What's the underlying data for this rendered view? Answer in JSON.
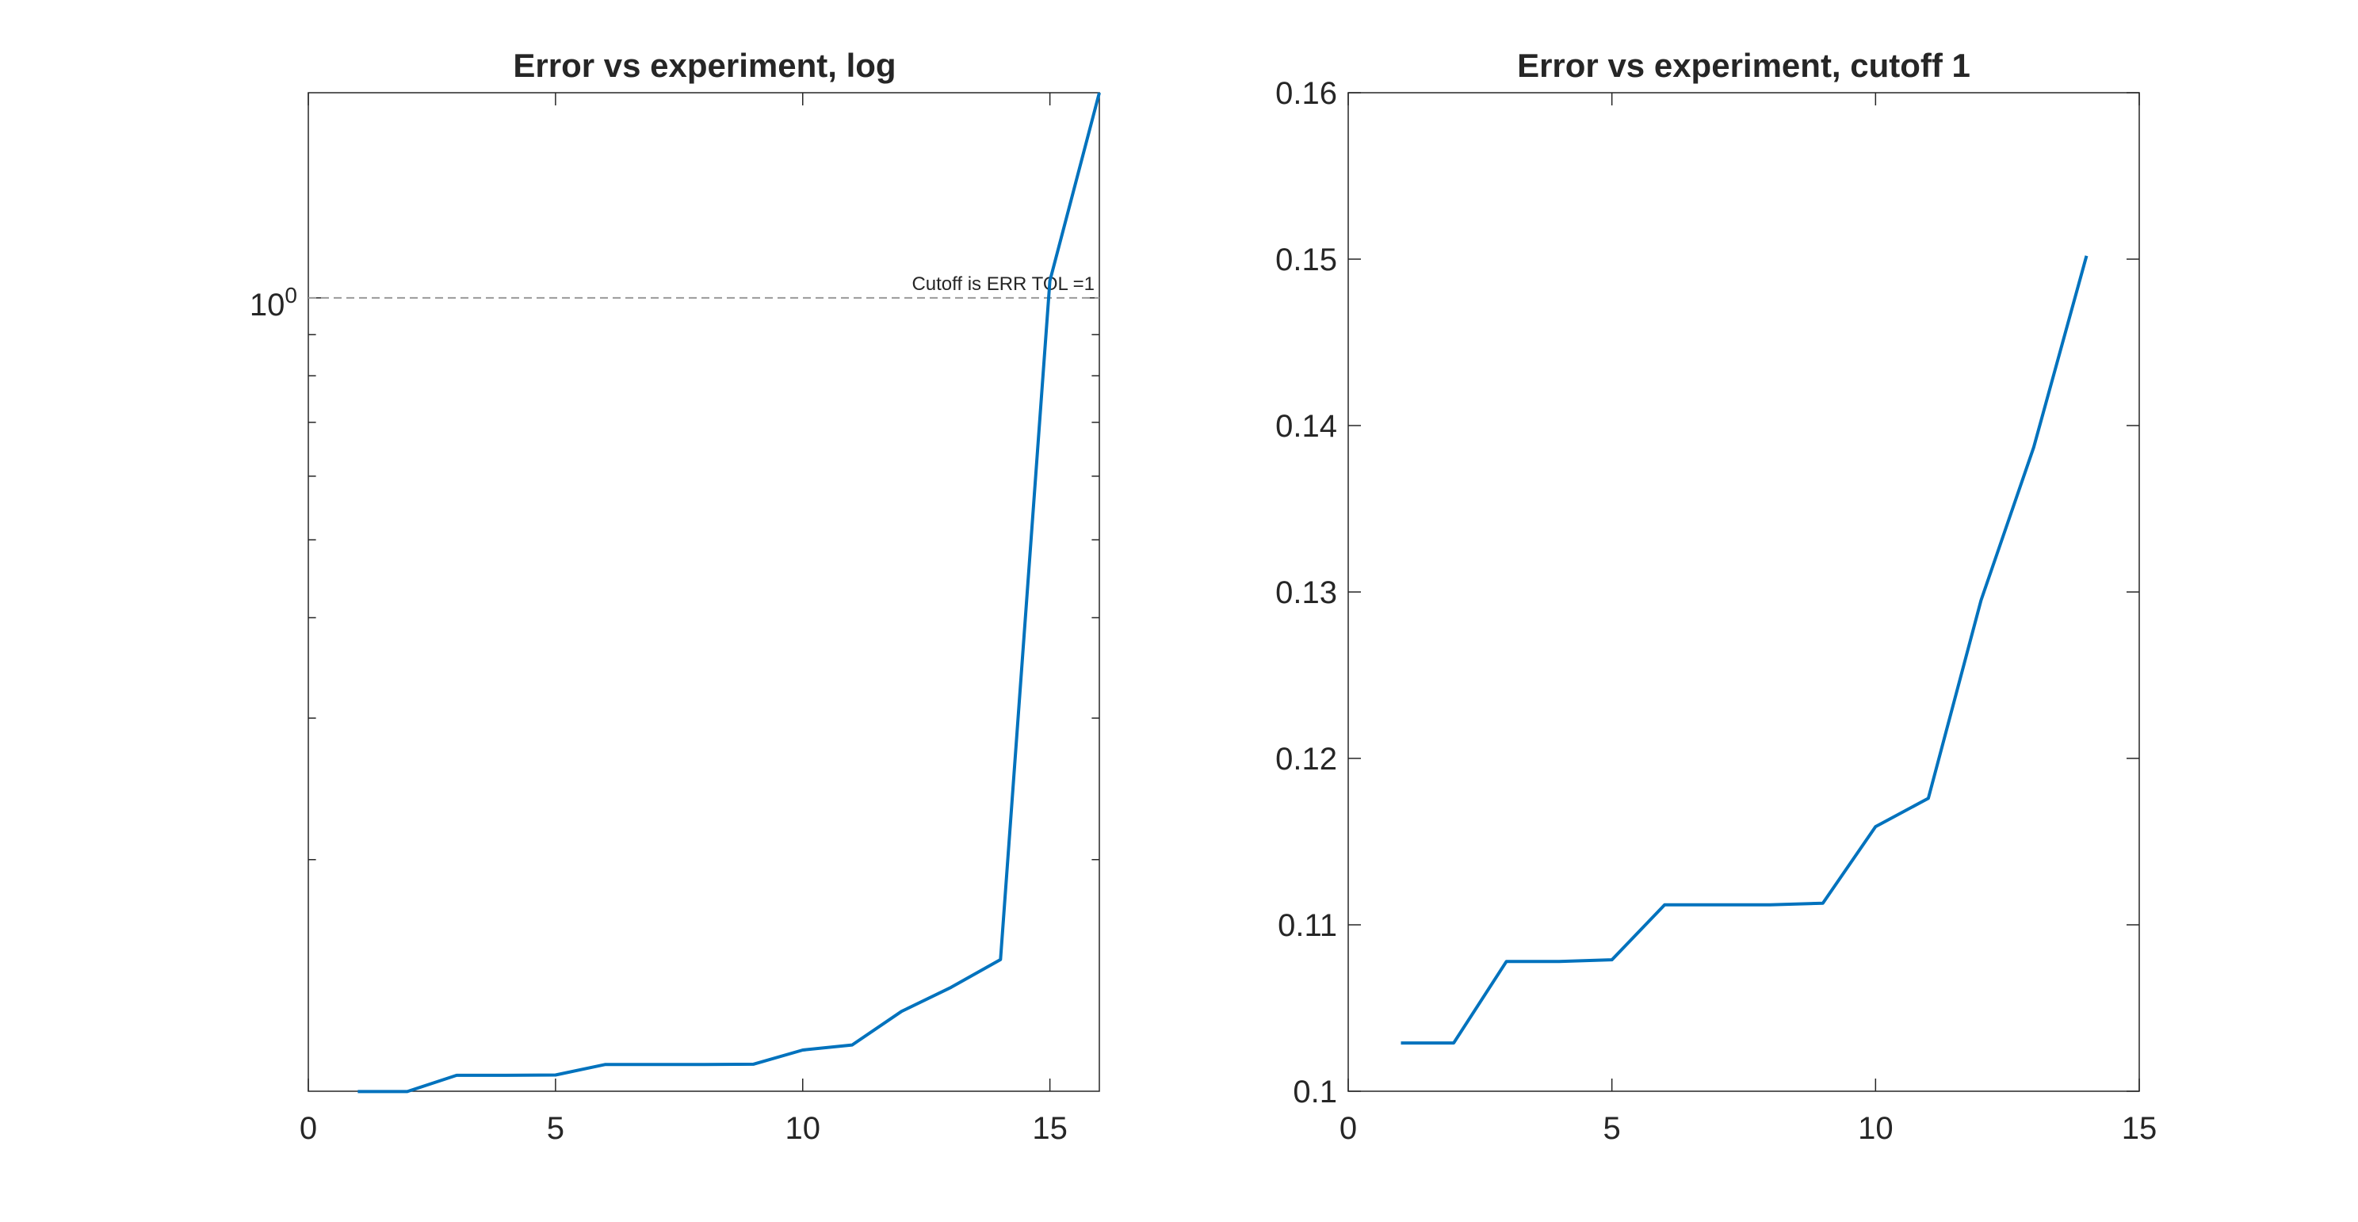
{
  "figure": {
    "line_color": "#0072BD",
    "axis_color": "#262626",
    "cutoff_color": "#9A9A9A"
  },
  "chart_data": [
    {
      "type": "line",
      "title": "Error vs experiment, log",
      "xlabel": "",
      "ylabel": "",
      "yscale": "log",
      "xlim": [
        0,
        16
      ],
      "ylim": [
        0.103,
        1.8
      ],
      "xticks": [
        0,
        5,
        10,
        15
      ],
      "xtick_labels": [
        "0",
        "5",
        "10",
        "15"
      ],
      "yticks": [
        1
      ],
      "ytick_base": "10",
      "ytick_exponent": "0",
      "grid": false,
      "series": [
        {
          "x": [
            1,
            2,
            3,
            4,
            5,
            6,
            7,
            8,
            9,
            10,
            11,
            12,
            13,
            14,
            15,
            16
          ],
          "y": [
            0.1029,
            0.1029,
            0.1078,
            0.1078,
            0.1079,
            0.1112,
            0.1112,
            0.1112,
            0.1113,
            0.1159,
            0.1176,
            0.1295,
            0.1387,
            0.1502,
            1.05,
            1.8
          ]
        }
      ],
      "cutoff": {
        "y": 1,
        "label": "Cutoff is ERR TOL =1"
      }
    },
    {
      "type": "line",
      "title": "Error vs experiment, cutoff 1",
      "xlabel": "",
      "ylabel": "",
      "xlim": [
        0,
        15
      ],
      "ylim": [
        0.1,
        0.16
      ],
      "xticks": [
        0,
        5,
        10,
        15
      ],
      "xtick_labels": [
        "0",
        "5",
        "10",
        "15"
      ],
      "yticks": [
        0.1,
        0.11,
        0.12,
        0.13,
        0.14,
        0.15,
        0.16
      ],
      "ytick_labels": [
        "0.1",
        "0.11",
        "0.12",
        "0.13",
        "0.14",
        "0.15",
        "0.16"
      ],
      "grid": false,
      "series": [
        {
          "x": [
            1,
            2,
            3,
            4,
            5,
            6,
            7,
            8,
            9,
            10,
            11,
            12,
            13,
            14
          ],
          "y": [
            0.1029,
            0.1029,
            0.1078,
            0.1078,
            0.1079,
            0.1112,
            0.1112,
            0.1112,
            0.1113,
            0.1159,
            0.1176,
            0.1295,
            0.1387,
            0.1502
          ]
        }
      ]
    }
  ]
}
